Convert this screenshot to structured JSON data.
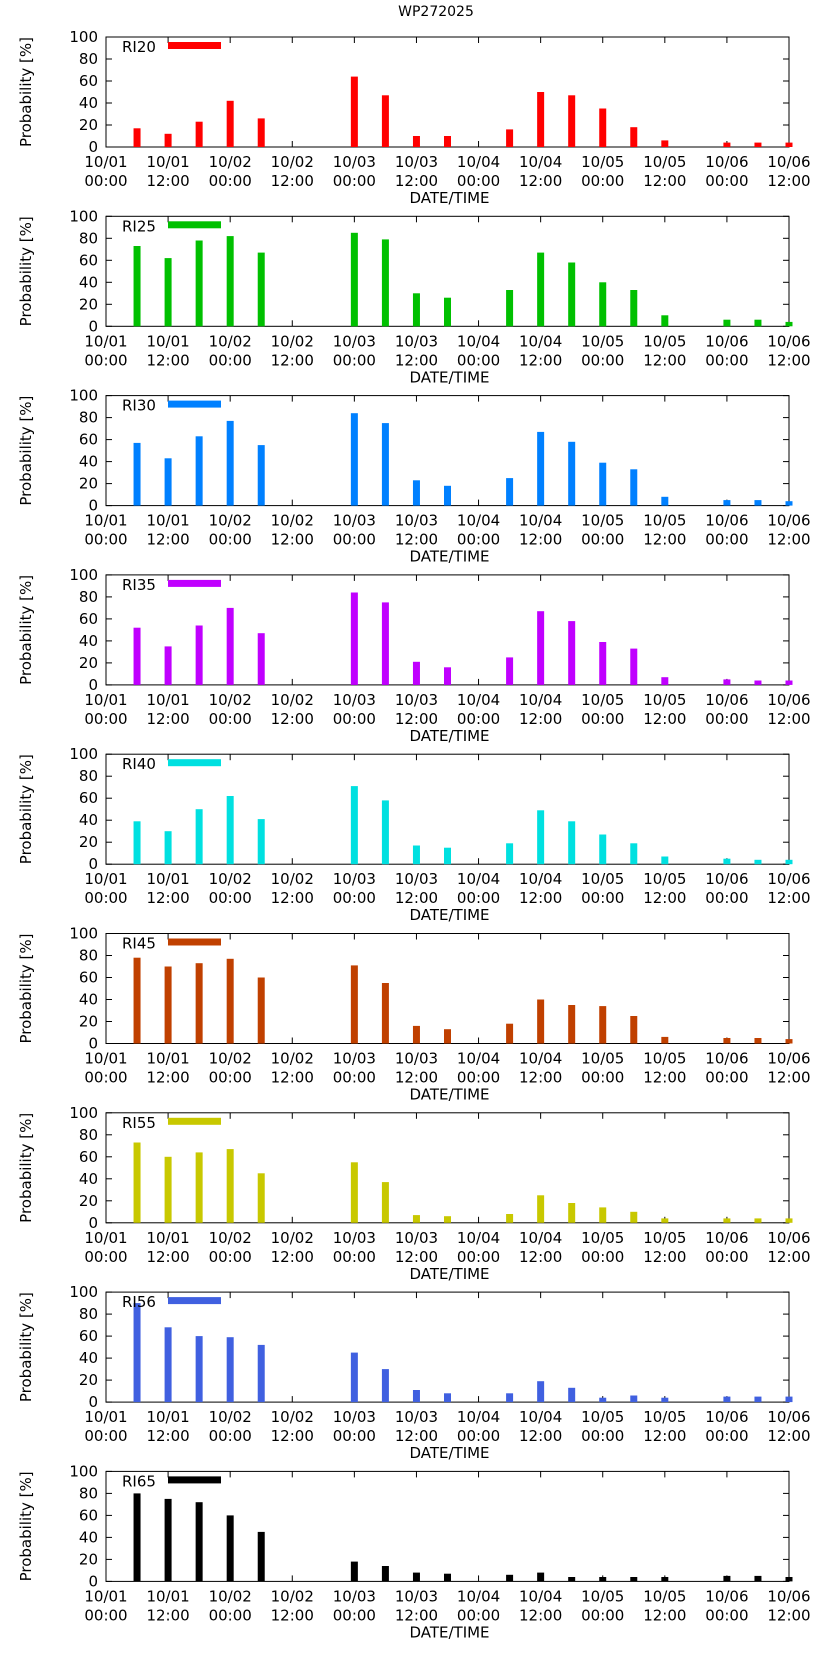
{
  "page_title": "WP272025",
  "chart_data": [
    {
      "type": "bar",
      "legend": "RI20",
      "color": "#ff0000",
      "title": "WP272025",
      "xlabel": "DATE/TIME",
      "ylabel": "Probability [%]",
      "ylim": [
        0,
        100
      ],
      "yticks": [
        0,
        20,
        40,
        60,
        80,
        100
      ],
      "xticks": [
        [
          "10/01",
          "00:00"
        ],
        [
          "10/01",
          "12:00"
        ],
        [
          "10/02",
          "00:00"
        ],
        [
          "10/02",
          "12:00"
        ],
        [
          "10/03",
          "00:00"
        ],
        [
          "10/03",
          "12:00"
        ],
        [
          "10/04",
          "00:00"
        ],
        [
          "10/04",
          "12:00"
        ],
        [
          "10/05",
          "00:00"
        ],
        [
          "10/05",
          "12:00"
        ],
        [
          "10/06",
          "00:00"
        ],
        [
          "10/06",
          "12:00"
        ]
      ],
      "x_hours": [
        6,
        12,
        18,
        24,
        30,
        48,
        54,
        60,
        66,
        78,
        84,
        90,
        96,
        102,
        108,
        120,
        126,
        132
      ],
      "values": [
        17,
        12,
        23,
        42,
        26,
        64,
        47,
        10,
        10,
        16,
        50,
        47,
        35,
        18,
        6,
        4,
        4,
        4
      ]
    },
    {
      "type": "bar",
      "legend": "RI25",
      "color": "#00c000",
      "xlabel": "DATE/TIME",
      "ylabel": "Probability [%]",
      "ylim": [
        0,
        100
      ],
      "x_hours": [
        6,
        12,
        18,
        24,
        30,
        48,
        54,
        60,
        66,
        78,
        84,
        90,
        96,
        102,
        108,
        120,
        126,
        132
      ],
      "values": [
        73,
        62,
        78,
        82,
        67,
        85,
        79,
        30,
        26,
        33,
        67,
        58,
        40,
        33,
        10,
        6,
        6,
        4
      ]
    },
    {
      "type": "bar",
      "legend": "RI30",
      "color": "#0080ff",
      "xlabel": "DATE/TIME",
      "ylabel": "Probability [%]",
      "ylim": [
        0,
        100
      ],
      "x_hours": [
        6,
        12,
        18,
        24,
        30,
        48,
        54,
        60,
        66,
        78,
        84,
        90,
        96,
        102,
        108,
        120,
        126,
        132
      ],
      "values": [
        57,
        43,
        63,
        77,
        55,
        84,
        75,
        23,
        18,
        25,
        67,
        58,
        39,
        33,
        8,
        5,
        5,
        4
      ]
    },
    {
      "type": "bar",
      "legend": "RI35",
      "color": "#c000ff",
      "xlabel": "DATE/TIME",
      "ylabel": "Probability [%]",
      "ylim": [
        0,
        100
      ],
      "x_hours": [
        6,
        12,
        18,
        24,
        30,
        48,
        54,
        60,
        66,
        78,
        84,
        90,
        96,
        102,
        108,
        120,
        126,
        132
      ],
      "values": [
        52,
        35,
        54,
        70,
        47,
        84,
        75,
        21,
        16,
        25,
        67,
        58,
        39,
        33,
        7,
        5,
        4,
        4
      ]
    },
    {
      "type": "bar",
      "legend": "RI40",
      "color": "#00e0e0",
      "xlabel": "DATE/TIME",
      "ylabel": "Probability [%]",
      "ylim": [
        0,
        100
      ],
      "x_hours": [
        6,
        12,
        18,
        24,
        30,
        48,
        54,
        60,
        66,
        78,
        84,
        90,
        96,
        102,
        108,
        120,
        126,
        132
      ],
      "values": [
        39,
        30,
        50,
        62,
        41,
        71,
        58,
        17,
        15,
        19,
        49,
        39,
        27,
        19,
        7,
        5,
        4,
        4
      ]
    },
    {
      "type": "bar",
      "legend": "RI45",
      "color": "#c04000",
      "xlabel": "DATE/TIME",
      "ylabel": "Probability [%]",
      "ylim": [
        0,
        100
      ],
      "x_hours": [
        6,
        12,
        18,
        24,
        30,
        48,
        54,
        60,
        66,
        78,
        84,
        90,
        96,
        102,
        108,
        120,
        126,
        132
      ],
      "values": [
        78,
        70,
        73,
        77,
        60,
        71,
        55,
        16,
        13,
        18,
        40,
        35,
        34,
        25,
        6,
        5,
        5,
        4
      ]
    },
    {
      "type": "bar",
      "legend": "RI55",
      "color": "#c8c800",
      "xlabel": "DATE/TIME",
      "ylabel": "Probability [%]",
      "ylim": [
        0,
        100
      ],
      "x_hours": [
        6,
        12,
        18,
        24,
        30,
        48,
        54,
        60,
        66,
        78,
        84,
        90,
        96,
        102,
        108,
        120,
        126,
        132
      ],
      "values": [
        73,
        60,
        64,
        67,
        45,
        55,
        37,
        7,
        6,
        8,
        25,
        18,
        14,
        10,
        4,
        4,
        4,
        4
      ]
    },
    {
      "type": "bar",
      "legend": "RI56",
      "color": "#4060e0",
      "xlabel": "DATE/TIME",
      "ylabel": "Probability [%]",
      "ylim": [
        0,
        100
      ],
      "x_hours": [
        6,
        12,
        18,
        24,
        30,
        48,
        54,
        60,
        66,
        78,
        84,
        90,
        96,
        102,
        108,
        120,
        126,
        132
      ],
      "values": [
        90,
        68,
        60,
        59,
        52,
        45,
        30,
        11,
        8,
        8,
        19,
        13,
        4,
        6,
        4,
        5,
        5,
        5
      ]
    },
    {
      "type": "bar",
      "legend": "RI65",
      "color": "#000000",
      "xlabel": "DATE/TIME",
      "ylabel": "Probability [%]",
      "ylim": [
        0,
        100
      ],
      "x_hours": [
        6,
        12,
        18,
        24,
        30,
        48,
        54,
        60,
        66,
        78,
        84,
        90,
        96,
        102,
        108,
        120,
        126,
        132
      ],
      "values": [
        80,
        75,
        72,
        60,
        45,
        18,
        14,
        8,
        7,
        6,
        8,
        4,
        4,
        4,
        4,
        5,
        5,
        4
      ]
    }
  ]
}
